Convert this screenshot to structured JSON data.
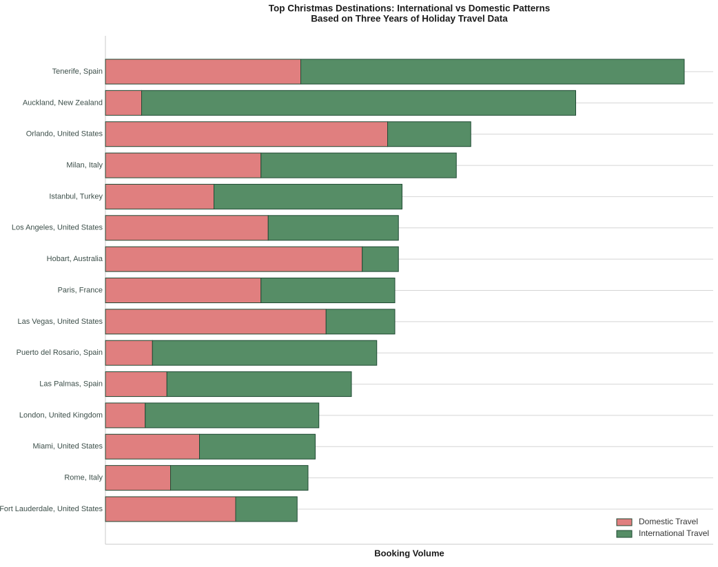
{
  "chart_data": {
    "type": "bar",
    "orientation": "horizontal",
    "stacked": true,
    "title": "Top Christmas Destinations: International vs Domestic Patterns",
    "subtitle": "Based on Three Years of Holiday Travel Data",
    "xlabel": "Booking Volume",
    "categories": [
      "Tenerife, Spain",
      "Auckland, New Zealand",
      "Orlando, United States",
      "Milan, Italy",
      "Istanbul, Turkey",
      "Los Angeles, United States",
      "Hobart, Australia",
      "Paris, France",
      "Las Vegas, United States",
      "Puerto del Rosario, Spain",
      "Las Palmas, Spain",
      "London, United Kingdom",
      "Miami, United States",
      "Rome, Italy",
      "Fort Lauderdale, United States"
    ],
    "series": [
      {
        "name": "Domestic Travel",
        "color": "#e07f7f",
        "values": [
          270,
          50,
          390,
          215,
          150,
          225,
          355,
          215,
          305,
          65,
          85,
          55,
          130,
          90,
          180
        ]
      },
      {
        "name": "International Travel",
        "color": "#568d66",
        "values": [
          530,
          600,
          115,
          270,
          260,
          180,
          50,
          185,
          95,
          310,
          255,
          240,
          160,
          190,
          85
        ]
      }
    ],
    "xlim": [
      0,
      840
    ],
    "grid": true,
    "legend": "lower right"
  }
}
